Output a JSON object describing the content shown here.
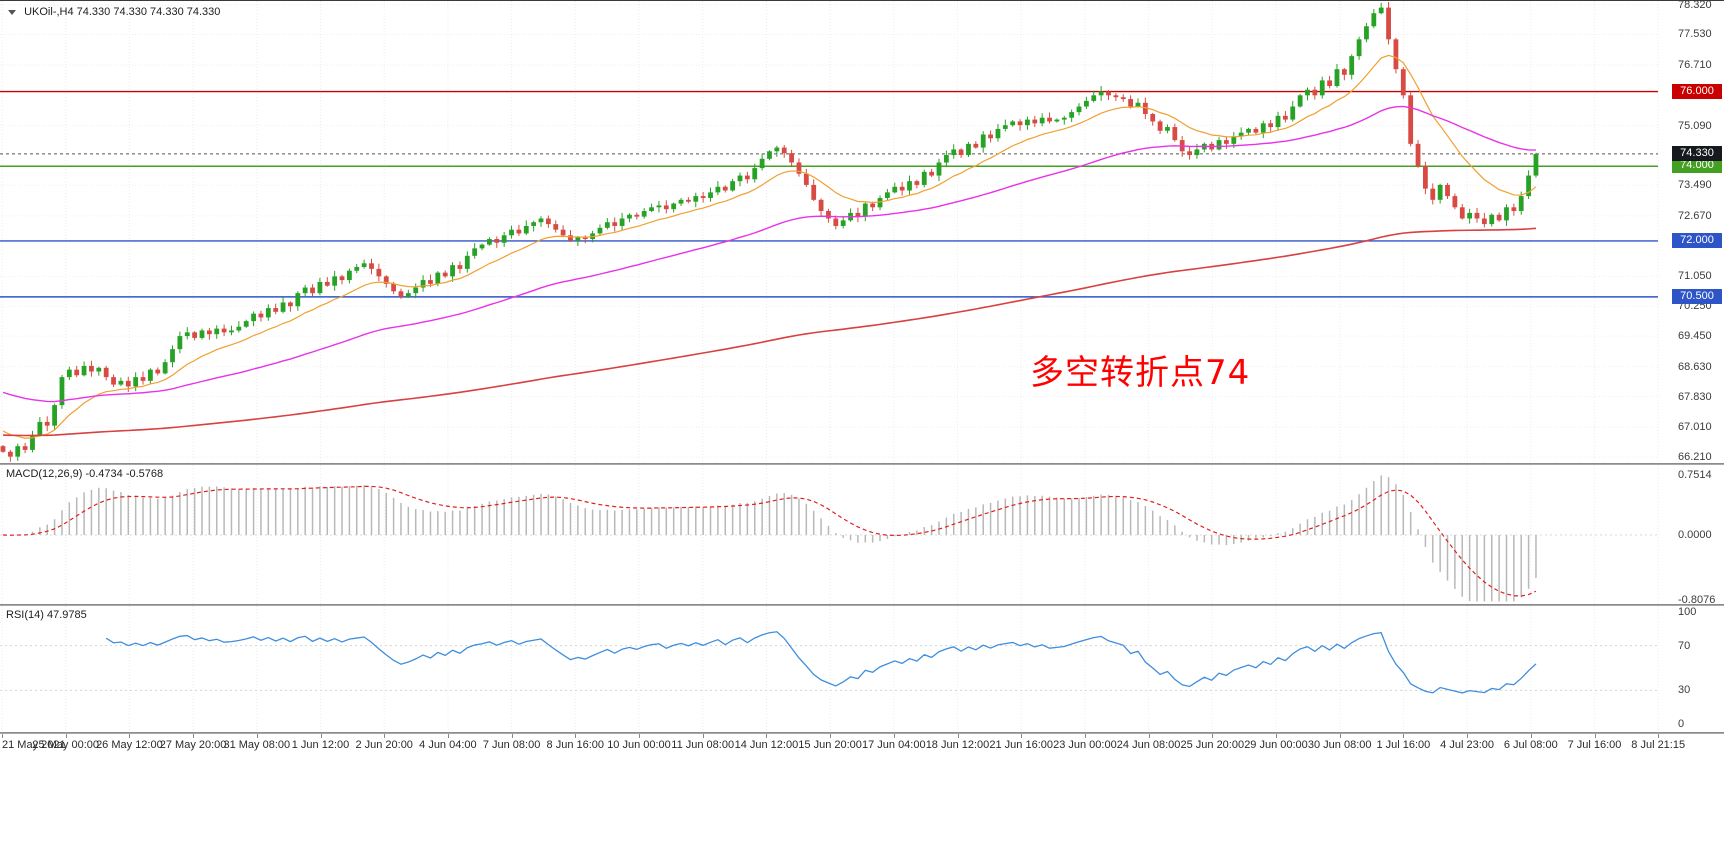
{
  "header": {
    "symbol_timeframe": "UKOil-,H4",
    "ohlc_text": "74.330 74.330 74.330 74.330"
  },
  "chart_data": {
    "type": "candlestick",
    "symbol": "UKOil-",
    "timeframe": "H4",
    "title": "UKOil-,H4 74.330 74.330 74.330 74.330",
    "price_axis": {
      "min": 66.21,
      "max": 78.32,
      "labels": [
        {
          "text": "78.320",
          "price": 78.32,
          "tag": false
        },
        {
          "text": "77.530",
          "price": 77.53,
          "tag": false
        },
        {
          "text": "76.710",
          "price": 76.71,
          "tag": false
        },
        {
          "text": "76.000",
          "price": 76.0,
          "tag": true,
          "color": "#c80000"
        },
        {
          "text": "75.090",
          "price": 75.09,
          "tag": false
        },
        {
          "text": "74.330",
          "price": 74.33,
          "tag": true,
          "color": "#16191d"
        },
        {
          "text": "74.000",
          "price": 74.0,
          "tag": true,
          "color": "#44a023"
        },
        {
          "text": "73.490",
          "price": 73.49,
          "tag": false
        },
        {
          "text": "72.670",
          "price": 72.67,
          "tag": false
        },
        {
          "text": "72.000",
          "price": 72.0,
          "tag": true,
          "color": "#2d55c8"
        },
        {
          "text": "71.050",
          "price": 71.05,
          "tag": false
        },
        {
          "text": "70.500",
          "price": 70.5,
          "tag": true,
          "color": "#2d55c8"
        },
        {
          "text": "70.250",
          "price": 70.25,
          "tag": false
        },
        {
          "text": "69.450",
          "price": 69.45,
          "tag": false
        },
        {
          "text": "68.630",
          "price": 68.63,
          "tag": false
        },
        {
          "text": "67.830",
          "price": 67.83,
          "tag": false
        },
        {
          "text": "67.010",
          "price": 67.01,
          "tag": false
        },
        {
          "text": "66.210",
          "price": 66.21,
          "tag": false
        }
      ]
    },
    "time_labels": [
      "21 May 2021",
      "25 May 00:00",
      "26 May 12:00",
      "27 May 20:00",
      "31 May 08:00",
      "1 Jun 12:00",
      "2 Jun 20:00",
      "4 Jun 04:00",
      "7 Jun 08:00",
      "8 Jun 16:00",
      "10 Jun 00:00",
      "11 Jun 08:00",
      "14 Jun 12:00",
      "15 Jun 20:00",
      "17 Jun 04:00",
      "18 Jun 12:00",
      "21 Jun 16:00",
      "23 Jun 00:00",
      "24 Jun 08:00",
      "25 Jun 20:00",
      "29 Jun 00:00",
      "30 Jun 08:00",
      "1 Jul 16:00",
      "4 Jul 23:00",
      "6 Jul 08:00",
      "7 Jul 16:00",
      "8 Jul 21:15"
    ],
    "first_open": 66.5,
    "closes": [
      66.35,
      66.22,
      66.5,
      66.4,
      66.8,
      67.15,
      67.05,
      67.6,
      68.35,
      68.55,
      68.4,
      68.65,
      68.5,
      68.6,
      68.35,
      68.15,
      68.25,
      68.1,
      68.35,
      68.25,
      68.55,
      68.45,
      68.75,
      69.1,
      69.45,
      69.55,
      69.4,
      69.6,
      69.5,
      69.65,
      69.55,
      69.6,
      69.7,
      69.85,
      70.05,
      69.95,
      70.2,
      70.1,
      70.35,
      70.25,
      70.6,
      70.75,
      70.6,
      70.9,
      70.8,
      71.05,
      70.95,
      71.2,
      71.3,
      71.4,
      71.25,
      71.05,
      70.85,
      70.65,
      70.5,
      70.6,
      70.75,
      70.95,
      70.85,
      71.15,
      71.05,
      71.35,
      71.25,
      71.6,
      71.8,
      71.9,
      72.05,
      71.95,
      72.15,
      72.3,
      72.2,
      72.4,
      72.5,
      72.6,
      72.45,
      72.3,
      72.15,
      72.0,
      72.1,
      72.05,
      72.2,
      72.35,
      72.5,
      72.4,
      72.6,
      72.7,
      72.65,
      72.8,
      72.9,
      72.95,
      72.85,
      73.0,
      73.1,
      73.05,
      73.2,
      73.15,
      73.3,
      73.45,
      73.35,
      73.6,
      73.75,
      73.65,
      73.95,
      74.2,
      74.4,
      74.5,
      74.35,
      74.1,
      73.8,
      73.5,
      73.1,
      72.8,
      72.6,
      72.4,
      72.55,
      72.75,
      72.65,
      73.0,
      72.9,
      73.15,
      73.3,
      73.45,
      73.35,
      73.6,
      73.5,
      73.85,
      73.75,
      74.1,
      74.3,
      74.45,
      74.3,
      74.6,
      74.5,
      74.85,
      74.75,
      75.0,
      75.1,
      75.2,
      75.1,
      75.25,
      75.15,
      75.3,
      75.2,
      75.25,
      75.3,
      75.45,
      75.6,
      75.75,
      75.9,
      76.0,
      75.9,
      75.85,
      75.8,
      75.6,
      75.7,
      75.4,
      75.2,
      74.95,
      75.05,
      74.7,
      74.4,
      74.3,
      74.45,
      74.6,
      74.45,
      74.7,
      74.6,
      74.8,
      74.9,
      75.0,
      74.9,
      75.15,
      75.05,
      75.35,
      75.25,
      75.6,
      75.9,
      76.05,
      75.9,
      76.3,
      76.15,
      76.6,
      76.45,
      76.95,
      77.4,
      77.75,
      78.1,
      78.25,
      77.4,
      76.6,
      75.9,
      74.6,
      74.0,
      73.4,
      73.1,
      73.5,
      73.2,
      72.9,
      72.6,
      72.75,
      72.6,
      72.45,
      72.7,
      72.55,
      72.9,
      72.8,
      73.2,
      73.75,
      74.33
    ],
    "horizontal_lines": [
      {
        "price": 76.0,
        "label": "76.000",
        "color": "#c80000"
      },
      {
        "price": 74.0,
        "label": "74.000",
        "color": "#44a023"
      },
      {
        "price": 72.0,
        "label": "72.000",
        "color": "#2d55c8"
      },
      {
        "price": 70.5,
        "label": "70.500",
        "color": "#2d55c8"
      }
    ],
    "current_price": {
      "value": 74.33,
      "label": "74.330",
      "tag_color": "#16191d"
    },
    "moving_averages": [
      {
        "name": "ma-fast",
        "period": 13,
        "seed": 67.0,
        "color": "#f0a030"
      },
      {
        "name": "ma-mid",
        "period": 55,
        "seed": 68.0,
        "color": "#e832e8"
      },
      {
        "name": "ma-slow",
        "period": 250,
        "seed": 66.8,
        "color": "#d94040"
      }
    ],
    "indicators": {
      "macd": {
        "label_text": "MACD(12,26,9) -0.4734 -0.5768",
        "fast": 12,
        "slow": 26,
        "signal": 9,
        "axis_labels": [
          {
            "text": "0.7514",
            "value": 0.7514
          },
          {
            "text": "0.0000",
            "value": 0
          },
          {
            "text": "-0.8076",
            "value": -0.8076
          }
        ],
        "histogram_color": "#b8b8b8",
        "signal_color": "#e02020"
      },
      "rsi": {
        "label_text": "RSI(14) 47.9785",
        "period": 14,
        "axis_labels": [
          {
            "text": "100",
            "value": 100
          },
          {
            "text": "70",
            "value": 70
          },
          {
            "text": "30",
            "value": 30
          },
          {
            "text": "0",
            "value": 0
          }
        ],
        "levels": [
          70,
          30
        ],
        "line_color": "#3e8ede"
      }
    },
    "annotation": {
      "text": "多空转折点74",
      "color": "#ff0000"
    },
    "candle_colors": {
      "up": "#27a227",
      "down": "#d84b44"
    }
  }
}
